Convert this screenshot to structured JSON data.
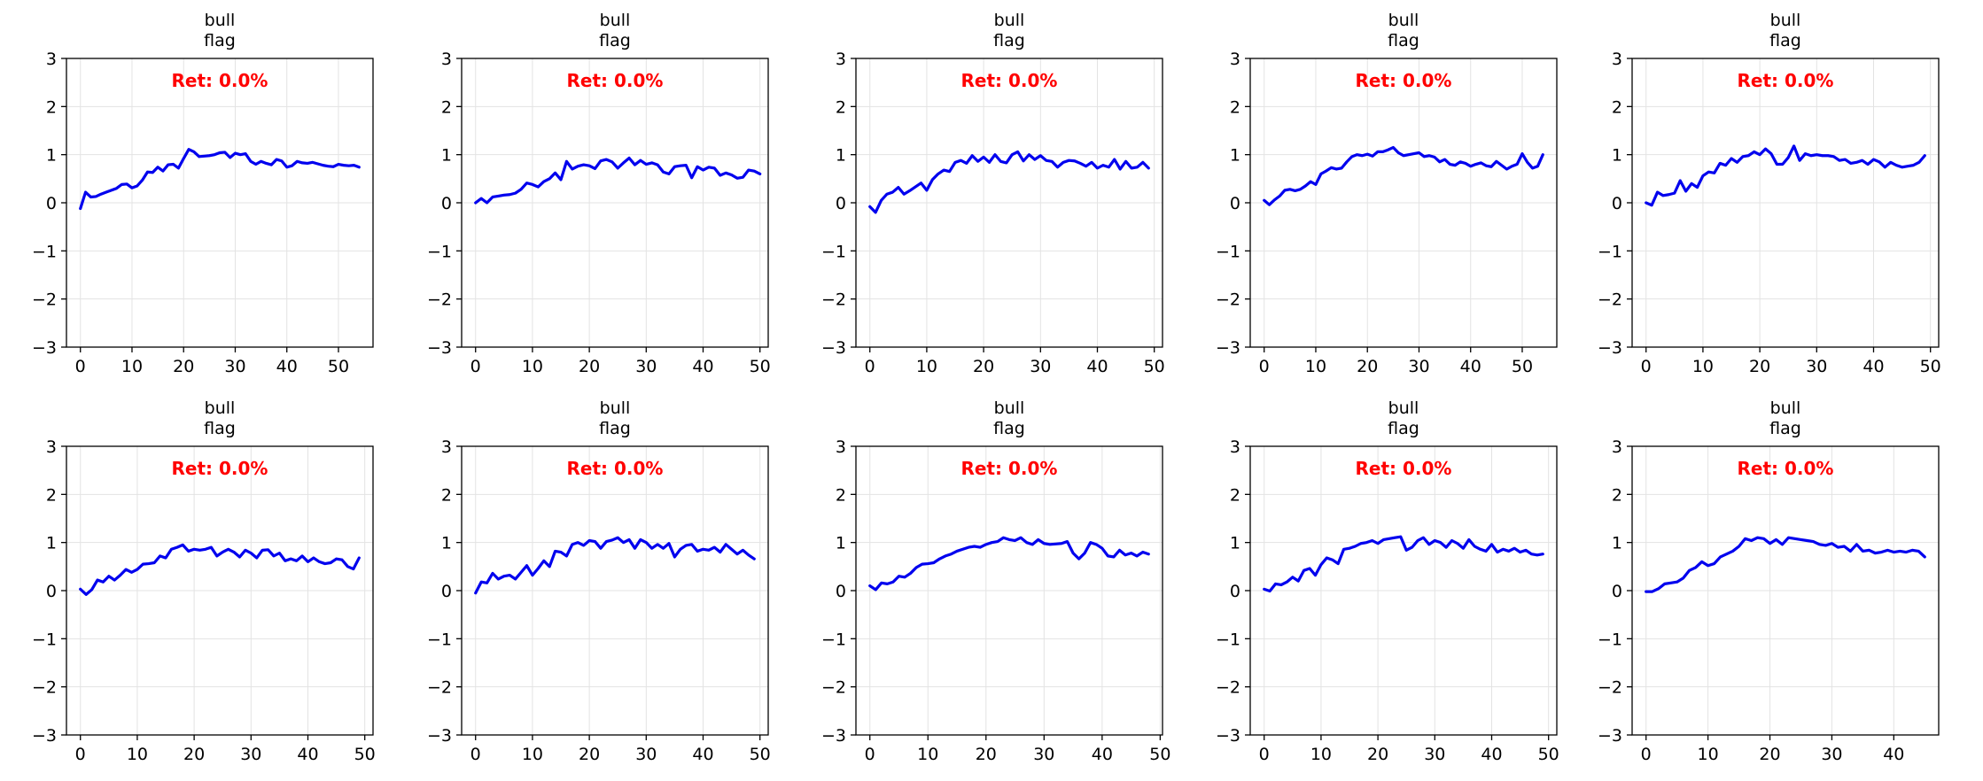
{
  "figure": {
    "background": "#ffffff",
    "line_color": "#0000ee",
    "annotation_color": "#ff0000",
    "grid_color": "#e3e3e3"
  },
  "chart_data": [
    {
      "type": "line",
      "title": [
        "bull",
        "flag"
      ],
      "annotation": "Ret: 0.0%",
      "xlim": [
        -2.7,
        56.7
      ],
      "ylim": [
        -3,
        3
      ],
      "xticks": [
        0,
        10,
        20,
        30,
        40,
        50
      ],
      "yticks": [
        -3,
        -2,
        -1,
        0,
        1,
        2,
        3
      ],
      "grid": true,
      "series": [
        {
          "values": [
            -0.12,
            0.22,
            0.12,
            0.13,
            0.18,
            0.22,
            0.26,
            0.3,
            0.38,
            0.39,
            0.31,
            0.35,
            0.47,
            0.64,
            0.63,
            0.74,
            0.66,
            0.79,
            0.8,
            0.72,
            0.92,
            1.11,
            1.06,
            0.96,
            0.97,
            0.98,
            1.0,
            1.04,
            1.05,
            0.94,
            1.03,
            1.0,
            1.02,
            0.86,
            0.8,
            0.86,
            0.82,
            0.79,
            0.9,
            0.87,
            0.74,
            0.77,
            0.86,
            0.83,
            0.82,
            0.84,
            0.81,
            0.78,
            0.76,
            0.75,
            0.8,
            0.78,
            0.77,
            0.78,
            0.74
          ]
        }
      ]
    },
    {
      "type": "line",
      "title": [
        "bull",
        "flag"
      ],
      "annotation": "Ret: 0.0%",
      "xlim": [
        -2.45,
        51.45
      ],
      "ylim": [
        -3,
        3
      ],
      "xticks": [
        0,
        10,
        20,
        30,
        40,
        50
      ],
      "yticks": [
        -3,
        -2,
        -1,
        0,
        1,
        2,
        3
      ],
      "grid": true,
      "series": [
        {
          "values": [
            0.0,
            0.09,
            0.0,
            0.12,
            0.14,
            0.16,
            0.17,
            0.2,
            0.28,
            0.41,
            0.38,
            0.33,
            0.44,
            0.5,
            0.62,
            0.48,
            0.86,
            0.7,
            0.76,
            0.79,
            0.77,
            0.71,
            0.87,
            0.9,
            0.85,
            0.72,
            0.83,
            0.93,
            0.79,
            0.88,
            0.8,
            0.83,
            0.79,
            0.64,
            0.6,
            0.75,
            0.77,
            0.78,
            0.52,
            0.75,
            0.68,
            0.74,
            0.72,
            0.57,
            0.62,
            0.58,
            0.51,
            0.53,
            0.68,
            0.66,
            0.6
          ]
        }
      ]
    },
    {
      "type": "line",
      "title": [
        "bull",
        "flag"
      ],
      "annotation": "Ret: 0.0%",
      "xlim": [
        -2.45,
        51.45
      ],
      "ylim": [
        -3,
        3
      ],
      "xticks": [
        0,
        10,
        20,
        30,
        40,
        50
      ],
      "yticks": [
        -3,
        -2,
        -1,
        0,
        1,
        2,
        3
      ],
      "grid": true,
      "series": [
        {
          "values": [
            -0.08,
            -0.2,
            0.05,
            0.18,
            0.22,
            0.32,
            0.18,
            0.25,
            0.33,
            0.41,
            0.26,
            0.48,
            0.6,
            0.68,
            0.65,
            0.84,
            0.88,
            0.82,
            0.98,
            0.86,
            0.95,
            0.84,
            1.0,
            0.86,
            0.83,
            1.0,
            1.06,
            0.87,
            1.0,
            0.9,
            0.98,
            0.88,
            0.86,
            0.74,
            0.84,
            0.88,
            0.87,
            0.82,
            0.76,
            0.84,
            0.72,
            0.78,
            0.74,
            0.9,
            0.7,
            0.86,
            0.72,
            0.74,
            0.84,
            0.72
          ]
        }
      ]
    },
    {
      "type": "line",
      "title": [
        "bull",
        "flag"
      ],
      "annotation": "Ret: 0.0%",
      "xlim": [
        -2.7,
        56.7
      ],
      "ylim": [
        -3,
        3
      ],
      "xticks": [
        0,
        10,
        20,
        30,
        40,
        50
      ],
      "yticks": [
        -3,
        -2,
        -1,
        0,
        1,
        2,
        3
      ],
      "grid": true,
      "series": [
        {
          "values": [
            0.05,
            -0.04,
            0.06,
            0.14,
            0.26,
            0.28,
            0.25,
            0.28,
            0.35,
            0.44,
            0.38,
            0.6,
            0.66,
            0.73,
            0.7,
            0.72,
            0.85,
            0.96,
            1.0,
            0.98,
            1.01,
            0.97,
            1.06,
            1.06,
            1.1,
            1.15,
            1.04,
            0.98,
            1.0,
            1.02,
            1.04,
            0.96,
            0.98,
            0.95,
            0.85,
            0.9,
            0.8,
            0.78,
            0.85,
            0.82,
            0.76,
            0.8,
            0.83,
            0.77,
            0.75,
            0.86,
            0.78,
            0.7,
            0.76,
            0.8,
            1.02,
            0.84,
            0.72,
            0.76,
            1.0
          ]
        }
      ]
    },
    {
      "type": "line",
      "title": [
        "bull",
        "flag"
      ],
      "annotation": "Ret: 0.0%",
      "xlim": [
        -2.45,
        51.45
      ],
      "ylim": [
        -3,
        3
      ],
      "xticks": [
        0,
        10,
        20,
        30,
        40,
        50
      ],
      "yticks": [
        -3,
        -2,
        -1,
        0,
        1,
        2,
        3
      ],
      "grid": true,
      "series": [
        {
          "values": [
            0.0,
            -0.05,
            0.22,
            0.15,
            0.17,
            0.2,
            0.46,
            0.24,
            0.4,
            0.32,
            0.56,
            0.64,
            0.62,
            0.82,
            0.78,
            0.92,
            0.84,
            0.96,
            0.98,
            1.06,
            1.0,
            1.12,
            1.02,
            0.8,
            0.8,
            0.94,
            1.18,
            0.88,
            1.02,
            0.98,
            1.0,
            0.98,
            0.98,
            0.96,
            0.88,
            0.9,
            0.82,
            0.84,
            0.88,
            0.8,
            0.9,
            0.85,
            0.74,
            0.84,
            0.78,
            0.74,
            0.76,
            0.78,
            0.84,
            0.98
          ]
        }
      ]
    },
    {
      "type": "line",
      "title": [
        "bull",
        "flag"
      ],
      "annotation": "Ret: 0.0%",
      "xlim": [
        -2.45,
        51.45
      ],
      "ylim": [
        -3,
        3
      ],
      "xticks": [
        0,
        10,
        20,
        30,
        40,
        50
      ],
      "yticks": [
        -3,
        -2,
        -1,
        0,
        1,
        2,
        3
      ],
      "grid": true,
      "series": [
        {
          "values": [
            0.03,
            -0.08,
            0.02,
            0.22,
            0.18,
            0.3,
            0.22,
            0.32,
            0.44,
            0.38,
            0.44,
            0.55,
            0.56,
            0.58,
            0.72,
            0.68,
            0.86,
            0.9,
            0.95,
            0.82,
            0.86,
            0.84,
            0.86,
            0.9,
            0.72,
            0.8,
            0.86,
            0.8,
            0.7,
            0.84,
            0.78,
            0.68,
            0.84,
            0.85,
            0.72,
            0.78,
            0.62,
            0.66,
            0.62,
            0.72,
            0.6,
            0.68,
            0.6,
            0.56,
            0.58,
            0.66,
            0.64,
            0.5,
            0.45,
            0.68
          ]
        }
      ]
    },
    {
      "type": "line",
      "title": [
        "bull",
        "flag"
      ],
      "annotation": "Ret: 0.0%",
      "xlim": [
        -2.45,
        51.45
      ],
      "ylim": [
        -3,
        3
      ],
      "xticks": [
        0,
        10,
        20,
        30,
        40,
        50
      ],
      "yticks": [
        -3,
        -2,
        -1,
        0,
        1,
        2,
        3
      ],
      "grid": true,
      "series": [
        {
          "values": [
            -0.05,
            0.18,
            0.16,
            0.36,
            0.24,
            0.3,
            0.32,
            0.24,
            0.38,
            0.52,
            0.32,
            0.46,
            0.62,
            0.5,
            0.82,
            0.8,
            0.72,
            0.96,
            1.0,
            0.94,
            1.04,
            1.02,
            0.88,
            1.02,
            1.05,
            1.1,
            1.0,
            1.06,
            0.88,
            1.06,
            1.0,
            0.88,
            0.96,
            0.88,
            0.98,
            0.7,
            0.86,
            0.94,
            0.96,
            0.82,
            0.86,
            0.84,
            0.9,
            0.8,
            0.96,
            0.86,
            0.76,
            0.84,
            0.74,
            0.66
          ]
        }
      ]
    },
    {
      "type": "line",
      "title": [
        "bull",
        "flag"
      ],
      "annotation": "Ret: 0.0%",
      "xlim": [
        -2.4,
        50.4
      ],
      "ylim": [
        -3,
        3
      ],
      "xticks": [
        0,
        10,
        20,
        30,
        40,
        50
      ],
      "yticks": [
        -3,
        -2,
        -1,
        0,
        1,
        2,
        3
      ],
      "grid": true,
      "series": [
        {
          "values": [
            0.1,
            0.02,
            0.16,
            0.14,
            0.18,
            0.3,
            0.28,
            0.36,
            0.48,
            0.55,
            0.56,
            0.58,
            0.66,
            0.72,
            0.76,
            0.82,
            0.86,
            0.9,
            0.92,
            0.9,
            0.96,
            1.0,
            1.02,
            1.1,
            1.06,
            1.04,
            1.1,
            1.0,
            0.96,
            1.06,
            0.98,
            0.96,
            0.97,
            0.98,
            1.02,
            0.78,
            0.66,
            0.78,
            1.0,
            0.96,
            0.88,
            0.72,
            0.7,
            0.84,
            0.74,
            0.78,
            0.72,
            0.8,
            0.76
          ]
        }
      ]
    },
    {
      "type": "line",
      "title": [
        "bull",
        "flag"
      ],
      "annotation": "Ret: 0.0%",
      "xlim": [
        -2.45,
        51.45
      ],
      "ylim": [
        -3,
        3
      ],
      "xticks": [
        0,
        10,
        20,
        30,
        40,
        50
      ],
      "yticks": [
        -3,
        -2,
        -1,
        0,
        1,
        2,
        3
      ],
      "grid": true,
      "series": [
        {
          "values": [
            0.03,
            -0.01,
            0.14,
            0.12,
            0.18,
            0.28,
            0.2,
            0.42,
            0.46,
            0.32,
            0.54,
            0.68,
            0.64,
            0.56,
            0.86,
            0.88,
            0.92,
            0.98,
            1.0,
            1.04,
            0.98,
            1.06,
            1.08,
            1.1,
            1.12,
            0.84,
            0.9,
            1.04,
            1.1,
            0.96,
            1.04,
            1.0,
            0.9,
            1.04,
            0.98,
            0.88,
            1.06,
            0.92,
            0.86,
            0.82,
            0.96,
            0.8,
            0.86,
            0.82,
            0.88,
            0.8,
            0.84,
            0.76,
            0.74,
            0.76
          ]
        }
      ]
    },
    {
      "type": "line",
      "title": [
        "bull",
        "flag"
      ],
      "annotation": "Ret: 0.0%",
      "xlim": [
        -2.25,
        47.25
      ],
      "ylim": [
        -3,
        3
      ],
      "xticks": [
        0,
        10,
        20,
        30,
        40
      ],
      "yticks": [
        -3,
        -2,
        -1,
        0,
        1,
        2,
        3
      ],
      "grid": true,
      "series": [
        {
          "values": [
            -0.02,
            -0.02,
            0.04,
            0.14,
            0.16,
            0.18,
            0.26,
            0.42,
            0.48,
            0.6,
            0.52,
            0.56,
            0.7,
            0.76,
            0.82,
            0.92,
            1.08,
            1.04,
            1.1,
            1.08,
            0.98,
            1.06,
            0.96,
            1.1,
            1.08,
            1.06,
            1.04,
            1.02,
            0.96,
            0.94,
            0.98,
            0.9,
            0.92,
            0.82,
            0.96,
            0.82,
            0.84,
            0.78,
            0.8,
            0.84,
            0.8,
            0.82,
            0.8,
            0.84,
            0.82,
            0.7
          ]
        }
      ]
    }
  ]
}
